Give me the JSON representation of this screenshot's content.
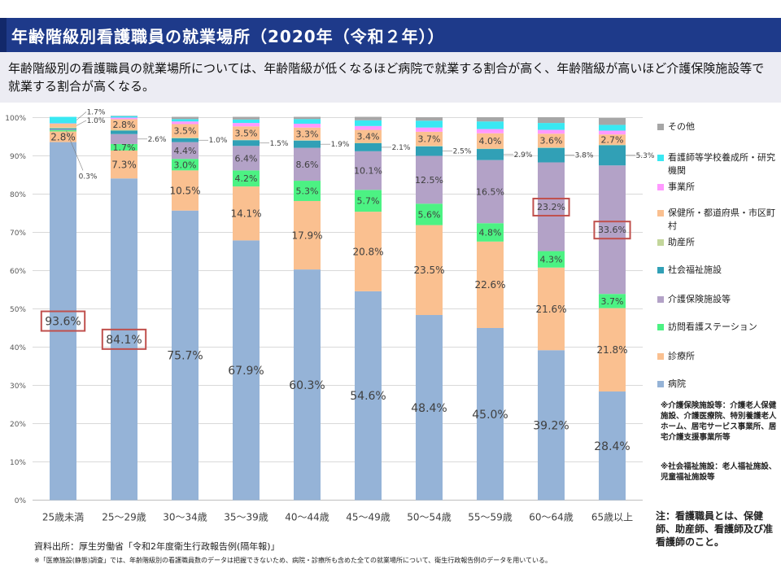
{
  "header": {
    "title": "年齢階級別看護職員の就業場所（2020年（令和２年））",
    "description": "年齢階級別の看護職員の就業場所については、年齢階級が低くなるほど病院で就業する割合が高く、年齢階級が高いほど介護保険施設等で就業する割合が高くなる。"
  },
  "chart_data": {
    "type": "bar",
    "stacked": true,
    "percent_stacked": true,
    "categories": [
      "25歳未満",
      "25～29歳",
      "30～34歳",
      "35～39歳",
      "40～44歳",
      "45～49歳",
      "50～54歳",
      "55～59歳",
      "60～64歳",
      "65歳以上"
    ],
    "y_ticks": [
      "0%",
      "10%",
      "20%",
      "30%",
      "40%",
      "50%",
      "60%",
      "70%",
      "80%",
      "90%",
      "100%"
    ],
    "ylim": [
      0,
      100
    ],
    "grid": true,
    "legend_position": "right",
    "series": [
      {
        "name": "病院",
        "color": "#95b3d7",
        "values": [
          93.6,
          84.1,
          75.7,
          67.9,
          60.3,
          54.6,
          48.4,
          45.0,
          39.2,
          28.4
        ]
      },
      {
        "name": "診療所",
        "color": "#fac090",
        "values": [
          2.8,
          7.3,
          10.5,
          14.1,
          17.9,
          20.8,
          23.5,
          22.6,
          21.6,
          21.8
        ]
      },
      {
        "name": "訪問看護ステーション",
        "color": "#4cf283",
        "values": [
          0.3,
          1.7,
          3.0,
          4.2,
          5.3,
          5.7,
          5.6,
          4.8,
          4.3,
          3.7
        ]
      },
      {
        "name": "介護保険施設等",
        "color": "#b3a2c7",
        "values": [
          0.2,
          2.6,
          4.4,
          6.4,
          8.6,
          10.1,
          12.5,
          16.5,
          23.2,
          33.6
        ]
      },
      {
        "name": "社会福祉施設",
        "color": "#31a0b6",
        "values": [
          0.3,
          0.9,
          1.0,
          1.5,
          1.9,
          2.1,
          2.5,
          2.9,
          3.8,
          5.3
        ]
      },
      {
        "name": "助産所",
        "color": "#c3d69b",
        "values": [
          0.2,
          0.2,
          0.2,
          0.1,
          0.1,
          0.1,
          0.1,
          0.1,
          0.1,
          0.1
        ]
      },
      {
        "name": "保健所・都道府県・市区町村",
        "color": "#fac090",
        "values": [
          1.0,
          2.8,
          3.5,
          3.5,
          3.3,
          3.4,
          3.7,
          4.0,
          3.6,
          2.7
        ]
      },
      {
        "name": "事業所",
        "color": "#ff99ff",
        "values": [
          0.1,
          0.4,
          0.7,
          0.9,
          1.0,
          1.0,
          1.1,
          1.1,
          1.0,
          1.0
        ]
      },
      {
        "name": "看護師等学校養成所・研究機関",
        "color": "#39e8f2",
        "values": [
          1.7,
          0.4,
          0.6,
          0.9,
          1.2,
          1.5,
          1.8,
          2.0,
          1.8,
          1.5
        ]
      },
      {
        "name": "その他",
        "color": "#a6a6a6",
        "values": [
          0.0,
          0.1,
          0.6,
          0.7,
          0.6,
          0.9,
          0.9,
          1.1,
          1.5,
          1.8
        ]
      }
    ],
    "data_labels": [
      {
        "category": "25歳未満",
        "series": "病院",
        "text": "93.6%",
        "boxed": true
      },
      {
        "category": "25～29歳",
        "series": "病院",
        "text": "84.1%",
        "boxed": true
      },
      {
        "category": "30～34歳",
        "series": "病院",
        "text": "75.7%"
      },
      {
        "category": "35～39歳",
        "series": "病院",
        "text": "67.9%"
      },
      {
        "category": "40～44歳",
        "series": "病院",
        "text": "60.3%"
      },
      {
        "category": "45～49歳",
        "series": "病院",
        "text": "54.6%"
      },
      {
        "category": "50～54歳",
        "series": "病院",
        "text": "48.4%"
      },
      {
        "category": "55～59歳",
        "series": "病院",
        "text": "45.0%"
      },
      {
        "category": "60～64歳",
        "series": "病院",
        "text": "39.2%"
      },
      {
        "category": "65歳以上",
        "series": "病院",
        "text": "28.4%"
      },
      {
        "category": "25歳未満",
        "series": "診療所",
        "text": "2.8%"
      },
      {
        "category": "25～29歳",
        "series": "診療所",
        "text": "7.3%"
      },
      {
        "category": "30～34歳",
        "series": "診療所",
        "text": "10.5%"
      },
      {
        "category": "35～39歳",
        "series": "診療所",
        "text": "14.1%"
      },
      {
        "category": "40～44歳",
        "series": "診療所",
        "text": "17.9%"
      },
      {
        "category": "45～49歳",
        "series": "診療所",
        "text": "20.8%"
      },
      {
        "category": "50～54歳",
        "series": "診療所",
        "text": "23.5%"
      },
      {
        "category": "55～59歳",
        "series": "診療所",
        "text": "22.6%"
      },
      {
        "category": "60～64歳",
        "series": "診療所",
        "text": "21.6%"
      },
      {
        "category": "65歳以上",
        "series": "診療所",
        "text": "21.8%"
      },
      {
        "category": "25歳未満",
        "series": "訪問看護ステーション",
        "text": "0.3%",
        "callout": "below"
      },
      {
        "category": "25～29歳",
        "series": "訪問看護ステーション",
        "text": "1.7%"
      },
      {
        "category": "30～34歳",
        "series": "訪問看護ステーション",
        "text": "3.0%"
      },
      {
        "category": "35～39歳",
        "series": "訪問看護ステーション",
        "text": "4.2%"
      },
      {
        "category": "40～44歳",
        "series": "訪問看護ステーション",
        "text": "5.3%"
      },
      {
        "category": "45～49歳",
        "series": "訪問看護ステーション",
        "text": "5.7%"
      },
      {
        "category": "50～54歳",
        "series": "訪問看護ステーション",
        "text": "5.6%"
      },
      {
        "category": "55～59歳",
        "series": "訪問看護ステーション",
        "text": "4.8%"
      },
      {
        "category": "60～64歳",
        "series": "訪問看護ステーション",
        "text": "4.3%"
      },
      {
        "category": "65歳以上",
        "series": "訪問看護ステーション",
        "text": "3.7%"
      },
      {
        "category": "25～29歳",
        "series": "介護保険施設等",
        "text": "2.6%",
        "callout": "right"
      },
      {
        "category": "30～34歳",
        "series": "介護保険施設等",
        "text": "4.4%"
      },
      {
        "category": "35～39歳",
        "series": "介護保険施設等",
        "text": "6.4%"
      },
      {
        "category": "40～44歳",
        "series": "介護保険施設等",
        "text": "8.6%"
      },
      {
        "category": "45～49歳",
        "series": "介護保険施設等",
        "text": "10.1%"
      },
      {
        "category": "50～54歳",
        "series": "介護保険施設等",
        "text": "12.5%"
      },
      {
        "category": "55～59歳",
        "series": "介護保険施設等",
        "text": "16.5%"
      },
      {
        "category": "60～64歳",
        "series": "介護保険施設等",
        "text": "23.2%",
        "boxed": true
      },
      {
        "category": "65歳以上",
        "series": "介護保険施設等",
        "text": "33.6%",
        "boxed": true
      },
      {
        "category": "30～34歳",
        "series": "社会福祉施設",
        "text": "1.0%",
        "callout": "right"
      },
      {
        "category": "35～39歳",
        "series": "社会福祉施設",
        "text": "1.5%",
        "callout": "right"
      },
      {
        "category": "40～44歳",
        "series": "社会福祉施設",
        "text": "1.9%",
        "callout": "right"
      },
      {
        "category": "45～49歳",
        "series": "社会福祉施設",
        "text": "2.1%",
        "callout": "right"
      },
      {
        "category": "50～54歳",
        "series": "社会福祉施設",
        "text": "2.5%",
        "callout": "right"
      },
      {
        "category": "55～59歳",
        "series": "社会福祉施設",
        "text": "2.9%",
        "callout": "right"
      },
      {
        "category": "60～64歳",
        "series": "社会福祉施設",
        "text": "3.8%",
        "callout": "right"
      },
      {
        "category": "65歳以上",
        "series": "社会福祉施設",
        "text": "5.3%",
        "callout": "right"
      },
      {
        "category": "25～29歳",
        "series": "保健所・都道府県・市区町村",
        "text": "2.8%"
      },
      {
        "category": "30～34歳",
        "series": "保健所・都道府県・市区町村",
        "text": "3.5%"
      },
      {
        "category": "35～39歳",
        "series": "保健所・都道府県・市区町村",
        "text": "3.5%"
      },
      {
        "category": "40～44歳",
        "series": "保健所・都道府県・市区町村",
        "text": "3.3%"
      },
      {
        "category": "45～49歳",
        "series": "保健所・都道府県・市区町村",
        "text": "3.4%"
      },
      {
        "category": "50～54歳",
        "series": "保健所・都道府県・市区町村",
        "text": "3.7%"
      },
      {
        "category": "55～59歳",
        "series": "保健所・都道府県・市区町村",
        "text": "4.0%"
      },
      {
        "category": "60～64歳",
        "series": "保健所・都道府県・市区町村",
        "text": "3.6%"
      },
      {
        "category": "65歳以上",
        "series": "保健所・都道府県・市区町村",
        "text": "2.7%"
      },
      {
        "category": "25歳未満",
        "series": "保健所・都道府県・市区町村",
        "text": "1.0%",
        "callout": "right"
      },
      {
        "category": "25歳未満",
        "series": "看護師等学校養成所・研究機関",
        "text": "1.7%",
        "callout": "right"
      }
    ],
    "legend": [
      "その他",
      "看護師等学校養成所・研究機関",
      "事業所",
      "保健所・都道府県・市区町村",
      "助産所",
      "社会福祉施設",
      "介護保険施設等",
      "訪問看護ステーション",
      "診療所",
      "病院"
    ],
    "highlight_color": "#c0504d"
  },
  "notes": {
    "kaigo": "※介護保険施設等：介護老人保健施設、介護医療院、特別養護老人ホーム、居宅サービス事業所、居宅介護支援事業所等",
    "shakai": "※社会福祉施設：老人福祉施設、児童福祉施設等",
    "definition": "注：看護職員とは、保健師、助産師、看護師及び准看護師のこと。"
  },
  "footer": {
    "source": "資料出所：厚生労働省「令和2年度衛生行政報告例(隔年報)」",
    "remark": "※「医療施設(静態)調査」では、年齢階級別の看護職員数のデータは把握できないため、病院・診療所も含めた全ての就業場所について、衛生行政報告例のデータを用いている。"
  }
}
